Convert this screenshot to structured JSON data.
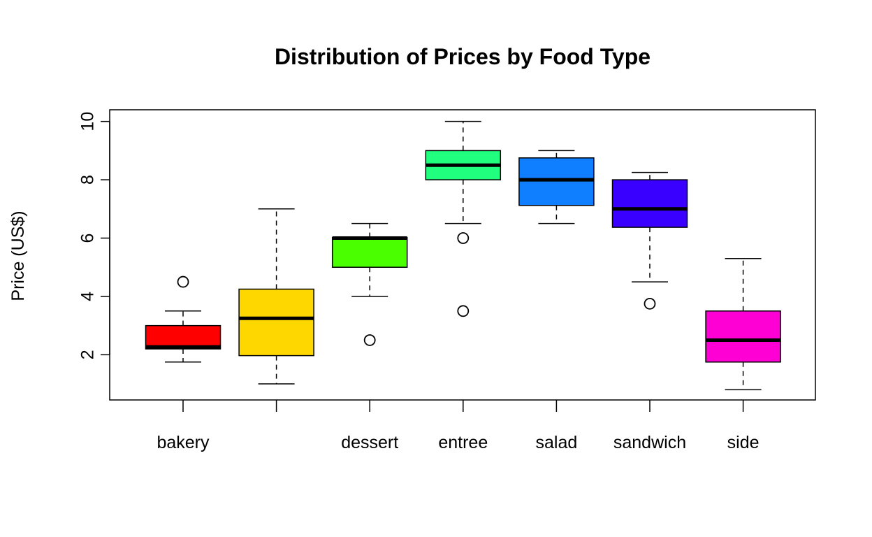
{
  "chart_data": {
    "type": "boxplot",
    "title": "Distribution of Prices by Food Type",
    "xlabel": "",
    "ylabel": "Price (US$)",
    "ylim": [
      0.45,
      10.4
    ],
    "yticks": [
      2,
      4,
      6,
      8,
      10
    ],
    "categories": [
      "bakery",
      "",
      "dessert",
      "entree",
      "salad",
      "sandwich",
      "side"
    ],
    "boxes": [
      {
        "category": "bakery",
        "color": "#FF0000",
        "whisker_low": 1.75,
        "q1": 2.2,
        "median": 2.27,
        "q3": 3.0,
        "whisker_high": 3.5,
        "outliers": [
          4.5
        ]
      },
      {
        "category": "",
        "color": "#FFD700",
        "whisker_low": 1.0,
        "q1": 1.97,
        "median": 3.25,
        "q3": 4.25,
        "whisker_high": 7.0,
        "outliers": []
      },
      {
        "category": "dessert",
        "color": "#49FF00",
        "whisker_low": 4.0,
        "q1": 5.0,
        "median": 6.0,
        "q3": 6.02,
        "whisker_high": 6.5,
        "outliers": [
          2.5
        ]
      },
      {
        "category": "entree",
        "color": "#20FF7E",
        "whisker_low": 6.5,
        "q1": 8.0,
        "median": 8.5,
        "q3": 9.0,
        "whisker_high": 10.0,
        "outliers": [
          6.0,
          3.5
        ]
      },
      {
        "category": "salad",
        "color": "#0F7EFF",
        "whisker_low": 6.5,
        "q1": 7.12,
        "median": 8.0,
        "q3": 8.75,
        "whisker_high": 9.0,
        "outliers": []
      },
      {
        "category": "sandwich",
        "color": "#3A00FF",
        "whisker_low": 4.5,
        "q1": 6.37,
        "median": 7.0,
        "q3": 8.0,
        "whisker_high": 8.25,
        "outliers": [
          3.75
        ]
      },
      {
        "category": "side",
        "color": "#FF00D4",
        "whisker_low": 0.8,
        "q1": 1.75,
        "median": 2.5,
        "q3": 3.5,
        "whisker_high": 5.3,
        "outliers": []
      }
    ],
    "grid": false,
    "legend": "none"
  }
}
